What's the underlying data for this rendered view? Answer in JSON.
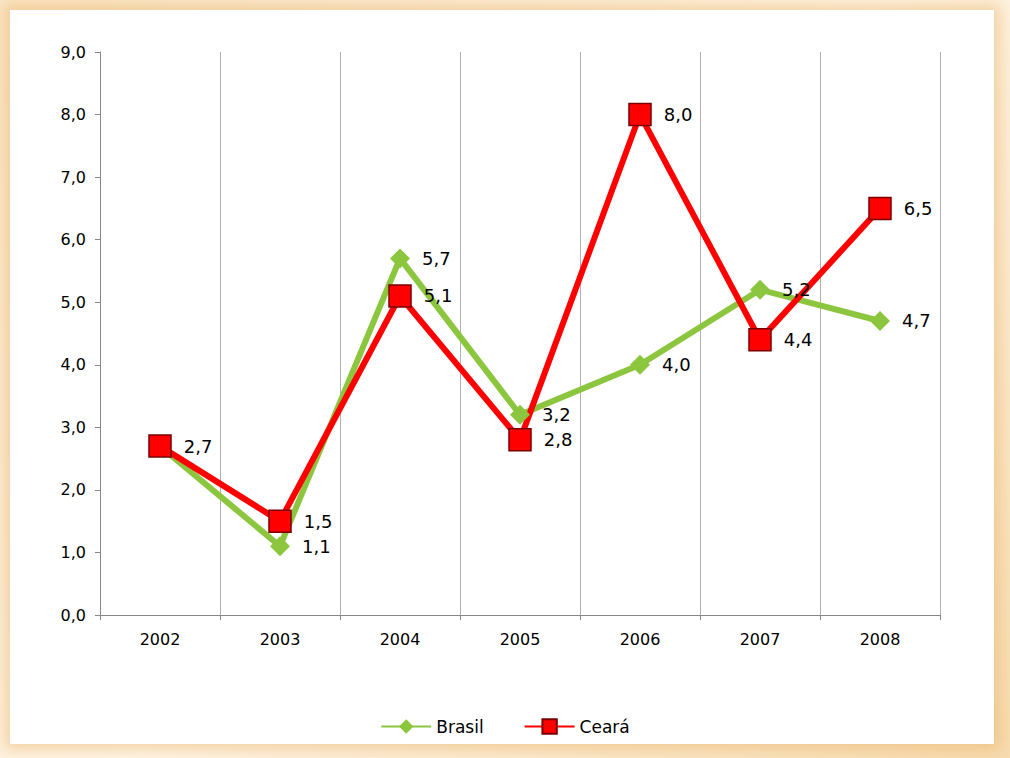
{
  "chart_data": {
    "type": "line",
    "categories": [
      "2002",
      "2003",
      "2004",
      "2005",
      "2006",
      "2007",
      "2008"
    ],
    "series": [
      {
        "name": "Brasil",
        "color": "#8cc63f",
        "marker": "diamond",
        "line_style": "solid",
        "values": [
          2.7,
          1.1,
          5.7,
          3.2,
          4.0,
          5.2,
          4.7
        ],
        "value_labels": [
          null,
          "1,1",
          "5,7",
          "3,2",
          "4,0",
          "5,2",
          "4,7"
        ]
      },
      {
        "name": "Ceará",
        "color": "#ff0000",
        "marker": "square",
        "line_style": "solid",
        "values": [
          2.7,
          1.5,
          5.1,
          2.8,
          8.0,
          4.4,
          6.5
        ],
        "value_labels": [
          "2,7",
          "1,5",
          "5,1",
          "2,8",
          "8,0",
          "4,4",
          "6,5"
        ]
      }
    ],
    "ylim": [
      0,
      9
    ],
    "yticks": [
      {
        "value": 0,
        "label": "0,0"
      },
      {
        "value": 1,
        "label": "1,0"
      },
      {
        "value": 2,
        "label": "2,0"
      },
      {
        "value": 3,
        "label": "3,0"
      },
      {
        "value": 4,
        "label": "4,0"
      },
      {
        "value": 5,
        "label": "5,0"
      },
      {
        "value": 6,
        "label": "6,0"
      },
      {
        "value": 7,
        "label": "7,0"
      },
      {
        "value": 8,
        "label": "8,0"
      },
      {
        "value": 9,
        "label": "9,0"
      }
    ],
    "grid": true,
    "legend": "bottom",
    "data_labels": true
  }
}
